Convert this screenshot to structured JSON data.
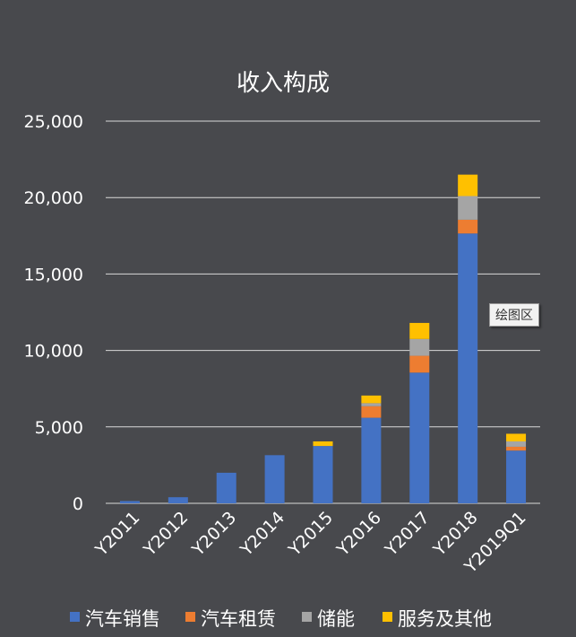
{
  "chart_data": {
    "type": "bar",
    "stacked": true,
    "title": "收入构成",
    "categories": [
      "Y2011",
      "Y2012",
      "Y2013",
      "Y2014",
      "Y2015",
      "Y2016",
      "Y2017",
      "Y2018",
      "Y2019Q1"
    ],
    "series": [
      {
        "name": "汽车销售",
        "color": "#4472c4",
        "values": [
          150,
          400,
          2000,
          3150,
          3750,
          5600,
          8550,
          17650,
          3450
        ]
      },
      {
        "name": "汽车租赁",
        "color": "#ed7d31",
        "values": [
          0,
          0,
          0,
          0,
          0,
          750,
          1100,
          900,
          250
        ]
      },
      {
        "name": "储能",
        "color": "#a5a5a5",
        "values": [
          0,
          0,
          0,
          0,
          0,
          200,
          1100,
          1550,
          350
        ]
      },
      {
        "name": "服务及其他",
        "color": "#ffc000",
        "values": [
          0,
          0,
          0,
          0,
          300,
          500,
          1050,
          1400,
          500
        ]
      }
    ],
    "ylim": [
      0,
      25000
    ],
    "yticks": [
      "0",
      "5,000",
      "10,000",
      "15,000",
      "20,000",
      "25,000"
    ],
    "ytick_values": [
      0,
      5000,
      10000,
      15000,
      20000,
      25000
    ],
    "grid": true,
    "legend": "bottom",
    "xlabel": "",
    "ylabel": ""
  },
  "tooltip": "绘图区",
  "colors": {
    "background": "#48494d",
    "grid": "#d9d9d9",
    "text": "#ffffff"
  }
}
